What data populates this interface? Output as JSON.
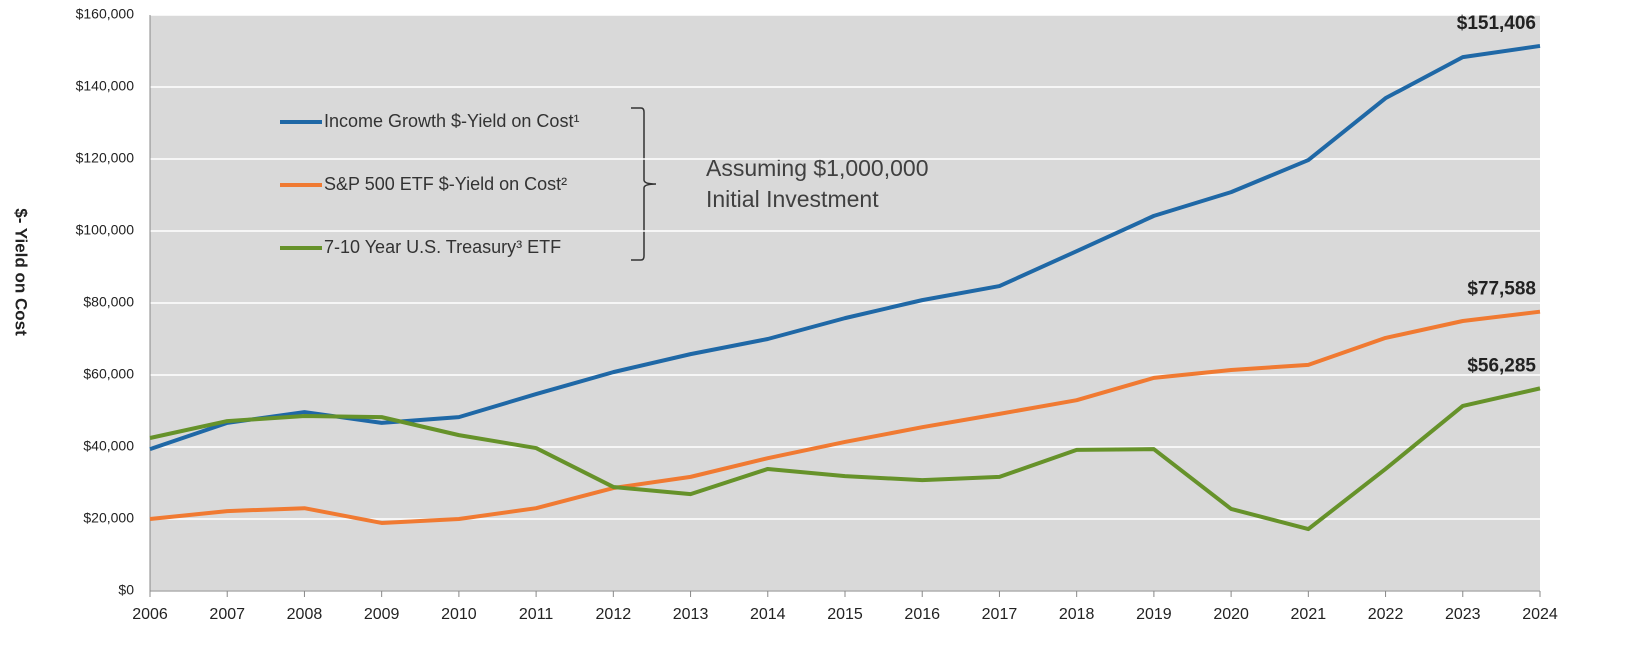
{
  "chart_data": {
    "type": "line",
    "ylabel": "$- Yield on Cost",
    "annotation": [
      "Assuming $1,000,000",
      "Initial Investment"
    ],
    "categories": [
      "2006",
      "2007",
      "2008",
      "2009",
      "2010",
      "2011",
      "2012",
      "2013",
      "2014",
      "2015",
      "2016",
      "2017",
      "2018",
      "2019",
      "2020",
      "2021",
      "2022",
      "2023",
      "2024"
    ],
    "ylim": [
      0,
      160000
    ],
    "yticks": [
      {
        "value": 0,
        "label": "$0"
      },
      {
        "value": 20000,
        "label": "$20,000"
      },
      {
        "value": 40000,
        "label": "$40,000"
      },
      {
        "value": 60000,
        "label": "$60,000"
      },
      {
        "value": 80000,
        "label": "$80,000"
      },
      {
        "value": 100000,
        "label": "$100,000"
      },
      {
        "value": 120000,
        "label": "$120,000"
      },
      {
        "value": 140000,
        "label": "$140,000"
      },
      {
        "value": 160000,
        "label": "$160,000"
      }
    ],
    "grid": true,
    "series": [
      {
        "name": "Income Growth $-Yield on Cost¹",
        "color": "#1f68a6",
        "values": [
          39400,
          46700,
          49700,
          46700,
          48300,
          54700,
          60800,
          65800,
          70000,
          75800,
          80800,
          84700,
          94400,
          104200,
          110800,
          119700,
          136900,
          148300,
          151406
        ],
        "end_label": "$151,406"
      },
      {
        "name": "S&P 500 ETF $-Yield on Cost²",
        "color": "#f07a32",
        "values": [
          20000,
          22200,
          23000,
          18900,
          20000,
          23000,
          28600,
          31700,
          36900,
          41400,
          45500,
          49200,
          53000,
          59200,
          61400,
          62800,
          70300,
          75000,
          77588
        ],
        "end_label": "$77,588"
      },
      {
        "name": "7-10 Year U.S. Treasury³ ETF",
        "color": "#66922a",
        "values": [
          42500,
          47200,
          48600,
          48300,
          43300,
          39700,
          28900,
          26900,
          33900,
          31900,
          30800,
          31700,
          39200,
          39400,
          22800,
          17200,
          33900,
          51400,
          56285
        ],
        "end_label": "$56,285"
      }
    ]
  }
}
